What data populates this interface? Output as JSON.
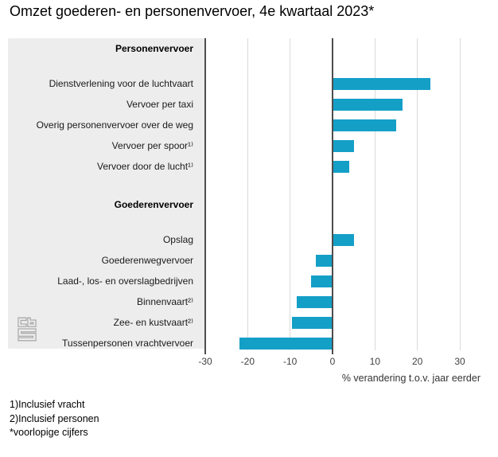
{
  "title": "Omzet goederen- en personenvervoer, 4e kwartaal 2023*",
  "chart_data": {
    "type": "bar",
    "orientation": "horizontal",
    "title": "Omzet goederen- en personenvervoer, 4e kwartaal 2023*",
    "xlabel": "% verandering t.o.v. jaar eerder",
    "ylabel": "",
    "xlim": [
      -30,
      30
    ],
    "xticks": [
      -30,
      -20,
      -10,
      0,
      10,
      20,
      30
    ],
    "grid": true,
    "bar_color": "#149fc7",
    "sections": [
      {
        "header": "Personenvervoer",
        "items": [
          {
            "label": "Dienstverlening voor de luchtvaart",
            "value": 23
          },
          {
            "label": "Vervoer per taxi",
            "value": 16.5
          },
          {
            "label": "Overig personenvervoer over de weg",
            "value": 15
          },
          {
            "label": "Vervoer per spoor¹⁾",
            "value": 5
          },
          {
            "label": "Vervoer door de lucht¹⁾",
            "value": 4
          }
        ]
      },
      {
        "header": "Goederenvervoer",
        "items": [
          {
            "label": "Opslag",
            "value": 5
          },
          {
            "label": "Goederenwegvervoer",
            "value": -4
          },
          {
            "label": "Laad-, los- en overslagbedrijven",
            "value": -5
          },
          {
            "label": "Binnenvaart²⁾",
            "value": -8.5
          },
          {
            "label": "Zee- en kustvaart²⁾",
            "value": -9.5
          },
          {
            "label": "Tussenpersonen vrachtvervoer",
            "value": -22
          }
        ]
      }
    ]
  },
  "footnotes": [
    "1)Inclusief vracht",
    "2)Inclusief personen",
    "*voorlopige cijfers"
  ],
  "colors": {
    "bar": "#149fc7",
    "label_panel": "#ededed",
    "gridline": "#d9d9d9",
    "axis_line": "#4d4d4d"
  }
}
